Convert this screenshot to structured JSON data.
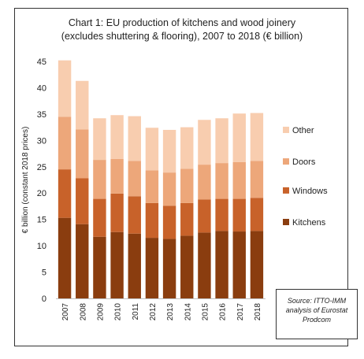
{
  "chart_data": {
    "type": "bar",
    "stacked": true,
    "title_lines": [
      "Chart 1: EU production of kitchens and wood joinery",
      "(excludes shuttering & flooring), 2007 to 2018 (€ billion)"
    ],
    "xlabel": "",
    "ylabel": "€ billion (constant 2018 prices)",
    "ylim": [
      0,
      45
    ],
    "yticks": [
      0,
      5,
      10,
      15,
      20,
      25,
      30,
      35,
      40,
      45
    ],
    "grid": false,
    "legend_position": "right",
    "categories": [
      "2007",
      "2008",
      "2009",
      "2010",
      "2011",
      "2012",
      "2013",
      "2014",
      "2015",
      "2016",
      "2017",
      "2018"
    ],
    "series": [
      {
        "name": "Kitchens",
        "color": "#8a3d0f",
        "values": [
          15.3,
          14.1,
          11.7,
          12.6,
          12.3,
          11.5,
          11.3,
          11.9,
          12.5,
          12.8,
          12.7,
          12.8
        ]
      },
      {
        "name": "Windows",
        "color": "#c8622a",
        "values": [
          9.2,
          8.7,
          7.2,
          7.3,
          7.1,
          6.6,
          6.3,
          6.2,
          6.3,
          6.1,
          6.2,
          6.3
        ]
      },
      {
        "name": "Doors",
        "color": "#eda77a",
        "values": [
          10.0,
          9.3,
          7.4,
          6.6,
          6.7,
          6.2,
          6.3,
          6.5,
          6.6,
          6.8,
          7.0,
          7.0
        ]
      },
      {
        "name": "Other",
        "color": "#f8cdaf",
        "values": [
          10.7,
          9.2,
          7.9,
          8.3,
          8.5,
          8.1,
          8.1,
          7.9,
          8.5,
          8.5,
          9.2,
          9.1
        ]
      }
    ],
    "source_note": [
      "Source: ITTO-IMM",
      "analysis of Eurostat",
      "Prodcom"
    ]
  }
}
